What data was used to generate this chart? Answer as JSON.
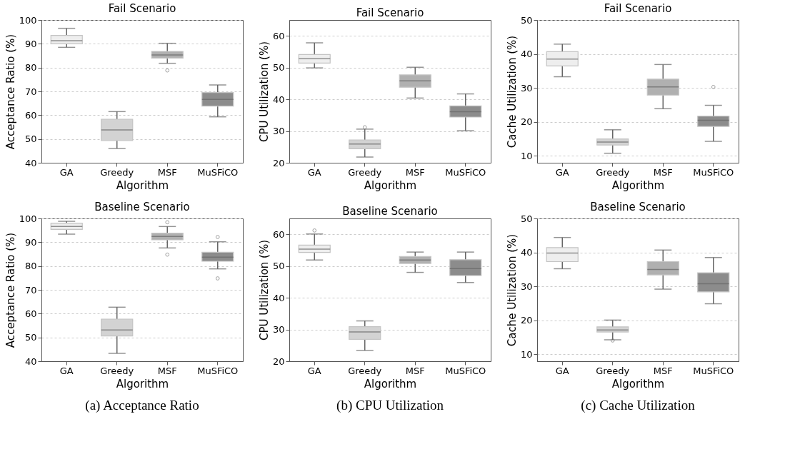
{
  "chart_data": [
    {
      "type": "box",
      "title": "Fail Scenario",
      "xlabel": "Algorithm",
      "ylabel": "Acceptance Ratio (%)",
      "categories": [
        "GA",
        "Greedy",
        "MSF",
        "MuSFiCO"
      ],
      "colors": [
        "#eeeeee",
        "#d3d3d3",
        "#b0b0b0",
        "#8c8c8c"
      ],
      "ylim": [
        40,
        100
      ],
      "yticks": [
        40,
        50,
        60,
        70,
        80,
        90,
        100
      ],
      "grid": "y",
      "boxes": [
        {
          "low": 88.5,
          "q1": 90,
          "median": 91.3,
          "q3": 93.5,
          "high": 96.5
        },
        {
          "low": 46,
          "q1": 49.3,
          "median": 53.8,
          "q3": 58.3,
          "high": 61.5
        },
        {
          "low": 81.8,
          "q1": 84,
          "median": 85.3,
          "q3": 86.8,
          "high": 90.2,
          "outliers": [
            78.8
          ]
        },
        {
          "low": 59.3,
          "q1": 63.8,
          "median": 66.6,
          "q3": 69.5,
          "high": 72.7
        }
      ]
    },
    {
      "type": "box",
      "title": "Fail Scenario",
      "xlabel": "Algorithm",
      "ylabel": "CPU Utilization (%)",
      "categories": [
        "GA",
        "Greedy",
        "MSF",
        "MuSFiCO"
      ],
      "colors": [
        "#eeeeee",
        "#d3d3d3",
        "#b0b0b0",
        "#8c8c8c"
      ],
      "ylim": [
        20,
        65
      ],
      "yticks": [
        20,
        30,
        40,
        50,
        60
      ],
      "grid": "y",
      "boxes": [
        {
          "low": 49.9,
          "q1": 51.4,
          "median": 52.8,
          "q3": 54.1,
          "high": 57.8
        },
        {
          "low": 21.8,
          "q1": 24.4,
          "median": 25.9,
          "q3": 27.2,
          "high": 30.6,
          "outliers": [
            31.2
          ]
        },
        {
          "low": 40.4,
          "q1": 43.8,
          "median": 45.8,
          "q3": 47.7,
          "high": 50.1
        },
        {
          "low": 30.1,
          "q1": 34.4,
          "median": 36.1,
          "q3": 37.9,
          "high": 41.7
        }
      ]
    },
    {
      "type": "box",
      "title": "Fail Scenario",
      "xlabel": "Algorithm",
      "ylabel": "Cache Utilization (%)",
      "categories": [
        "GA",
        "Greedy",
        "MSF",
        "MuSFiCO"
      ],
      "colors": [
        "#eeeeee",
        "#d3d3d3",
        "#b0b0b0",
        "#8c8c8c"
      ],
      "ylim": [
        8,
        50
      ],
      "yticks": [
        10,
        20,
        30,
        40,
        50
      ],
      "grid": "y",
      "boxes": [
        {
          "low": 33.3,
          "q1": 36.5,
          "median": 38.5,
          "q3": 40.7,
          "high": 42.9
        },
        {
          "low": 10.8,
          "q1": 13.2,
          "median": 14.1,
          "q3": 15.0,
          "high": 17.7
        },
        {
          "low": 23.9,
          "q1": 27.9,
          "median": 30.3,
          "q3": 32.6,
          "high": 36.9
        },
        {
          "low": 14.3,
          "q1": 18.7,
          "median": 20.5,
          "q3": 21.7,
          "high": 24.9,
          "outliers": [
            30.3
          ]
        }
      ]
    },
    {
      "type": "box",
      "title": "Baseline Scenario",
      "xlabel": "Algorithm",
      "ylabel": "Acceptance Ratio (%)",
      "categories": [
        "GA",
        "Greedy",
        "MSF",
        "MuSFiCO"
      ],
      "colors": [
        "#eeeeee",
        "#d3d3d3",
        "#b0b0b0",
        "#8c8c8c"
      ],
      "ylim": [
        40,
        100
      ],
      "yticks": [
        40,
        50,
        60,
        70,
        80,
        90,
        100
      ],
      "grid": "y",
      "annotations": [
        "(a)  Acceptance Ratio"
      ],
      "boxes": [
        {
          "low": 93.4,
          "q1": 95.4,
          "median": 96.6,
          "q3": 98.0,
          "high": 98.8
        },
        {
          "low": 43.3,
          "q1": 50.6,
          "median": 53.1,
          "q3": 57.7,
          "high": 62.7
        },
        {
          "low": 87.6,
          "q1": 91.0,
          "median": 92.4,
          "q3": 93.8,
          "high": 96.6,
          "outliers": [
            98.4,
            84.8
          ]
        },
        {
          "low": 78.8,
          "q1": 82.0,
          "median": 83.7,
          "q3": 85.8,
          "high": 90.2,
          "outliers": [
            92.2,
            74.8
          ]
        }
      ]
    },
    {
      "type": "box",
      "title": "Baseline Scenario",
      "xlabel": "Algorithm",
      "ylabel": "CPU Utilization (%)",
      "categories": [
        "GA",
        "Greedy",
        "MSF",
        "MuSFiCO"
      ],
      "colors": [
        "#eeeeee",
        "#d3d3d3",
        "#b0b0b0",
        "#8c8c8c"
      ],
      "ylim": [
        20,
        65
      ],
      "yticks": [
        20,
        30,
        40,
        50,
        60
      ],
      "grid": "y",
      "annotations": [
        "(b)  CPU Utilization"
      ],
      "boxes": [
        {
          "low": 51.9,
          "q1": 54.3,
          "median": 55.3,
          "q3": 56.6,
          "high": 60.1,
          "outliers": [
            61.2
          ]
        },
        {
          "low": 23.4,
          "q1": 26.9,
          "median": 29.2,
          "q3": 30.9,
          "high": 32.7
        },
        {
          "low": 48.0,
          "q1": 50.8,
          "median": 51.9,
          "q3": 53.0,
          "high": 54.4
        },
        {
          "low": 44.8,
          "q1": 47.0,
          "median": 49.2,
          "q3": 52.0,
          "high": 54.4
        }
      ]
    },
    {
      "type": "box",
      "title": "Baseline Scenario",
      "xlabel": "Algorithm",
      "ylabel": "Cache Utilization (%)",
      "categories": [
        "GA",
        "Greedy",
        "MSF",
        "MuSFiCO"
      ],
      "colors": [
        "#eeeeee",
        "#d3d3d3",
        "#b0b0b0",
        "#8c8c8c"
      ],
      "ylim": [
        8,
        50
      ],
      "yticks": [
        10,
        20,
        30,
        40,
        50
      ],
      "grid": "y",
      "annotations": [
        "(c)  Cache Utilization"
      ],
      "boxes": [
        {
          "low": 35.2,
          "q1": 37.3,
          "median": 39.8,
          "q3": 41.4,
          "high": 44.4
        },
        {
          "low": 14.3,
          "q1": 16.6,
          "median": 17.2,
          "q3": 18.1,
          "high": 20.1,
          "outliers": [
            14.1
          ]
        },
        {
          "low": 29.2,
          "q1": 33.4,
          "median": 35.0,
          "q3": 37.3,
          "high": 40.7
        },
        {
          "low": 24.9,
          "q1": 28.4,
          "median": 30.8,
          "q3": 34.0,
          "high": 38.5
        }
      ]
    }
  ]
}
